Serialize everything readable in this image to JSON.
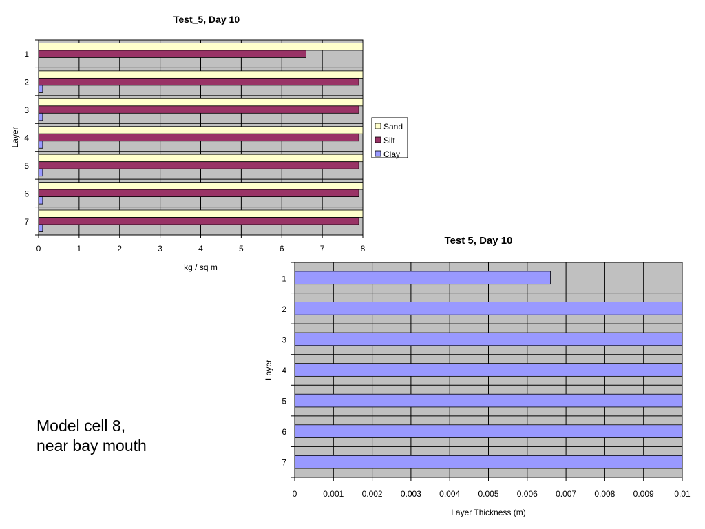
{
  "caption": {
    "line1": "Model cell 8,",
    "line2": "near bay mouth"
  },
  "colors": {
    "plot_bg": "#c0c0c0",
    "sand": "#ffffcc",
    "silt": "#993366",
    "clay": "#9999ff",
    "thickness": "#9999ff"
  },
  "chart_data": [
    {
      "type": "bar",
      "orientation": "horizontal",
      "title": "Test_5, Day 10",
      "xlabel": "kg / sq m",
      "ylabel": "Layer",
      "xlim": [
        0,
        8
      ],
      "xticks": [
        "0",
        "1",
        "2",
        "3",
        "4",
        "5",
        "6",
        "7",
        "8"
      ],
      "categories": [
        "1",
        "2",
        "3",
        "4",
        "5",
        "6",
        "7"
      ],
      "legend": "right",
      "grid": true,
      "series": [
        {
          "name": "Sand",
          "values": [
            8,
            8,
            8,
            8,
            8,
            8,
            8
          ]
        },
        {
          "name": "Silt",
          "values": [
            6.6,
            7.9,
            7.9,
            7.9,
            7.9,
            7.9,
            7.9
          ]
        },
        {
          "name": "Clay",
          "values": [
            0,
            0.1,
            0.1,
            0.1,
            0.1,
            0.1,
            0.1
          ]
        }
      ]
    },
    {
      "type": "bar",
      "orientation": "horizontal",
      "title": "Test 5, Day 10",
      "xlabel": "Layer Thickness (m)",
      "ylabel": "Layer",
      "xlim": [
        0,
        0.01
      ],
      "xticks": [
        "0",
        "0.001",
        "0.002",
        "0.003",
        "0.004",
        "0.005",
        "0.006",
        "0.007",
        "0.008",
        "0.009",
        "0.01"
      ],
      "categories": [
        "1",
        "2",
        "3",
        "4",
        "5",
        "6",
        "7"
      ],
      "grid": true,
      "series": [
        {
          "values": [
            0.0066,
            0.01,
            0.01,
            0.01,
            0.01,
            0.01,
            0.01
          ]
        }
      ]
    }
  ]
}
